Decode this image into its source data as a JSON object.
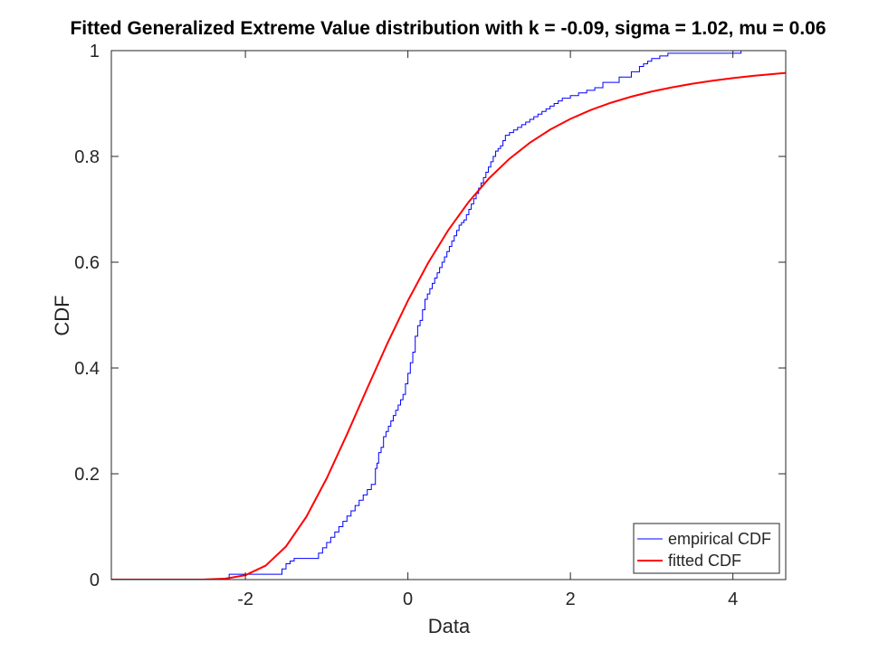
{
  "chart_data": {
    "type": "line",
    "title": "Fitted Generalized Extreme Value distribution with k = -0.09, sigma = 1.02, mu = 0.06",
    "xlabel": "Data",
    "ylabel": "CDF",
    "xlim": [
      -3.65,
      4.65
    ],
    "ylim": [
      0,
      1
    ],
    "xticks": [
      -2,
      0,
      2,
      4
    ],
    "xtick_labels": [
      "-2",
      "0",
      "2",
      "4"
    ],
    "yticks": [
      0,
      0.2,
      0.4,
      0.6,
      0.8,
      1
    ],
    "ytick_labels": [
      "0",
      "0.2",
      "0.4",
      "0.6",
      "0.8",
      "1"
    ],
    "grid": false,
    "legend_position": "bottom-right",
    "series": [
      {
        "name": "empirical CDF",
        "kind": "step",
        "color": "#0000ff",
        "x": [
          -3.65,
          -2.2,
          -1.7,
          -1.55,
          -1.5,
          -1.45,
          -1.4,
          -1.1,
          -1.05,
          -1.0,
          -0.95,
          -0.9,
          -0.85,
          -0.8,
          -0.75,
          -0.7,
          -0.65,
          -0.6,
          -0.55,
          -0.5,
          -0.45,
          -0.4,
          -0.38,
          -0.36,
          -0.33,
          -0.3,
          -0.27,
          -0.24,
          -0.21,
          -0.18,
          -0.15,
          -0.12,
          -0.09,
          -0.06,
          -0.03,
          0.0,
          0.03,
          0.06,
          0.09,
          0.12,
          0.15,
          0.18,
          0.21,
          0.24,
          0.27,
          0.3,
          0.33,
          0.36,
          0.39,
          0.42,
          0.45,
          0.48,
          0.51,
          0.54,
          0.57,
          0.6,
          0.63,
          0.66,
          0.69,
          0.72,
          0.75,
          0.78,
          0.81,
          0.84,
          0.87,
          0.9,
          0.93,
          0.96,
          0.99,
          1.02,
          1.05,
          1.08,
          1.11,
          1.14,
          1.17,
          1.2,
          1.25,
          1.3,
          1.35,
          1.4,
          1.45,
          1.5,
          1.55,
          1.6,
          1.65,
          1.7,
          1.75,
          1.8,
          1.85,
          1.9,
          2.0,
          2.1,
          2.2,
          2.3,
          2.4,
          2.6,
          2.75,
          2.85,
          2.9,
          2.95,
          3.0,
          3.1,
          3.2,
          4.1,
          4.65
        ],
        "y": [
          0,
          0.01,
          0.01,
          0.02,
          0.03,
          0.035,
          0.04,
          0.05,
          0.06,
          0.07,
          0.08,
          0.09,
          0.1,
          0.11,
          0.12,
          0.13,
          0.14,
          0.15,
          0.16,
          0.17,
          0.18,
          0.21,
          0.22,
          0.24,
          0.25,
          0.27,
          0.28,
          0.29,
          0.3,
          0.31,
          0.32,
          0.33,
          0.34,
          0.35,
          0.37,
          0.39,
          0.41,
          0.43,
          0.46,
          0.48,
          0.49,
          0.51,
          0.53,
          0.54,
          0.55,
          0.56,
          0.57,
          0.58,
          0.59,
          0.6,
          0.61,
          0.62,
          0.63,
          0.64,
          0.65,
          0.66,
          0.67,
          0.675,
          0.68,
          0.69,
          0.7,
          0.71,
          0.72,
          0.73,
          0.74,
          0.75,
          0.76,
          0.77,
          0.78,
          0.79,
          0.8,
          0.81,
          0.815,
          0.82,
          0.83,
          0.84,
          0.845,
          0.85,
          0.855,
          0.86,
          0.865,
          0.87,
          0.875,
          0.88,
          0.885,
          0.89,
          0.895,
          0.9,
          0.905,
          0.91,
          0.915,
          0.92,
          0.925,
          0.93,
          0.94,
          0.95,
          0.96,
          0.97,
          0.975,
          0.98,
          0.985,
          0.99,
          0.995,
          1.0,
          1.0
        ]
      },
      {
        "name": "fitted CDF",
        "kind": "line",
        "color": "#ff0000",
        "x": [
          -3.65,
          -3.0,
          -2.5,
          -2.25,
          -2.0,
          -1.75,
          -1.5,
          -1.25,
          -1.0,
          -0.75,
          -0.5,
          -0.25,
          0.0,
          0.25,
          0.5,
          0.75,
          1.0,
          1.25,
          1.5,
          1.75,
          2.0,
          2.25,
          2.5,
          2.75,
          3.0,
          3.25,
          3.5,
          3.75,
          4.0,
          4.25,
          4.65
        ],
        "y": [
          0.0,
          0.0,
          0.00022,
          0.00173,
          0.00825,
          0.0264,
          0.0627,
          0.1186,
          0.1912,
          0.2745,
          0.3618,
          0.4474,
          0.5273,
          0.5989,
          0.6613,
          0.7144,
          0.7588,
          0.7956,
          0.8258,
          0.8506,
          0.8709,
          0.8877,
          0.9015,
          0.913,
          0.9226,
          0.9306,
          0.9374,
          0.9432,
          0.9481,
          0.9523,
          0.958
        ]
      }
    ]
  }
}
